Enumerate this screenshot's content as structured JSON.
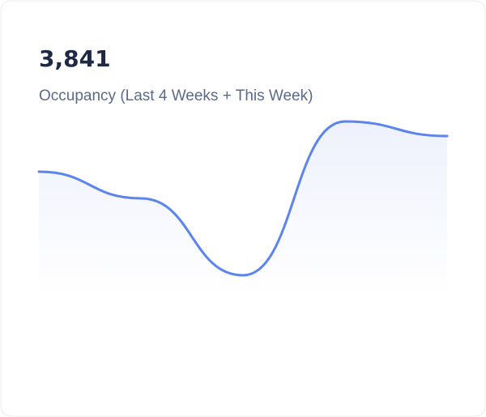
{
  "chart_data": {
    "type": "area",
    "title": "3,841",
    "subtitle": "Occupancy (Last 4 Weeks + This Week)",
    "values": [
      148,
      115,
      20,
      210,
      192
    ],
    "color": "#5b84ee",
    "fill": "#eef1fc"
  }
}
